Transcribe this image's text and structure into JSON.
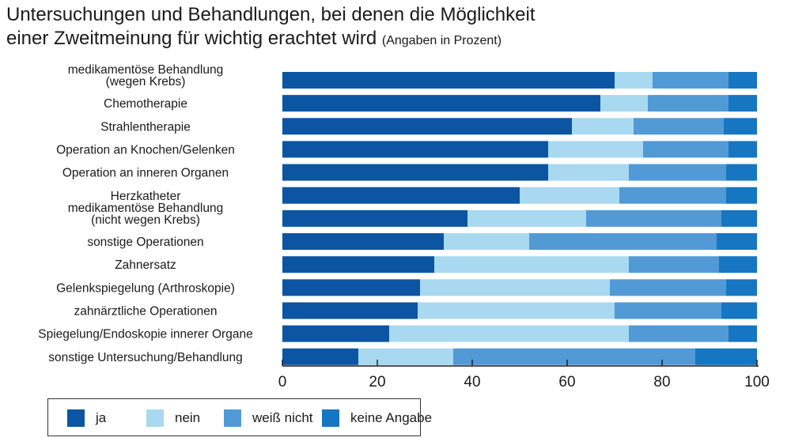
{
  "title": {
    "line1": "Untersuchungen und Behandlungen, bei denen die Möglichkeit",
    "line2": "einer Zweitmeinung für wichtig erachtet wird",
    "note": "(Angaben in Prozent)"
  },
  "colors": {
    "ja": "#0b55a3",
    "nein": "#a9d8f1",
    "weiss_nicht": "#519ad6",
    "keine_angabe": "#1676c1"
  },
  "chart_data": {
    "type": "bar",
    "orientation": "horizontal",
    "stacked": true,
    "categories": [
      [
        "medikamentöse Behandlung",
        "(wegen Krebs)"
      ],
      [
        "Chemotherapie"
      ],
      [
        "Strahlentherapie"
      ],
      [
        "Operation an Knochen/Gelenken"
      ],
      [
        "Operation an inneren Organen"
      ],
      [
        "Herzkatheter"
      ],
      [
        "medikamentöse Behandlung",
        "(nicht wegen Krebs)"
      ],
      [
        "sonstige Operationen"
      ],
      [
        "Zahnersatz"
      ],
      [
        "Gelenkspiegelung (Arthroskopie)"
      ],
      [
        "zahnärztliche Operationen"
      ],
      [
        "Spiegelung/Endoskopie innerer Organe"
      ],
      [
        "sonstige Untersuchung/Behandlung"
      ]
    ],
    "series": [
      {
        "name": "ja",
        "values": [
          70,
          67,
          61,
          56,
          56,
          50,
          39,
          34,
          32,
          29,
          28.5,
          22.5,
          16
        ]
      },
      {
        "name": "nein",
        "values": [
          8,
          10,
          13,
          20,
          17,
          21,
          25,
          18,
          41,
          40,
          41.5,
          50.5,
          20
        ]
      },
      {
        "name": "weiß nicht",
        "values": [
          16,
          17,
          19,
          18,
          20.5,
          22.5,
          28.5,
          39.5,
          19,
          24.5,
          22.5,
          21,
          51
        ]
      },
      {
        "name": "keine Angabe",
        "values": [
          6,
          6,
          7,
          6,
          6.5,
          6.5,
          7.5,
          8.5,
          8,
          6.5,
          7.5,
          6,
          13
        ]
      }
    ],
    "xlim": [
      0,
      100
    ],
    "xticks": [
      0,
      20,
      40,
      60,
      80,
      100
    ],
    "legend_position": "bottom-left"
  }
}
